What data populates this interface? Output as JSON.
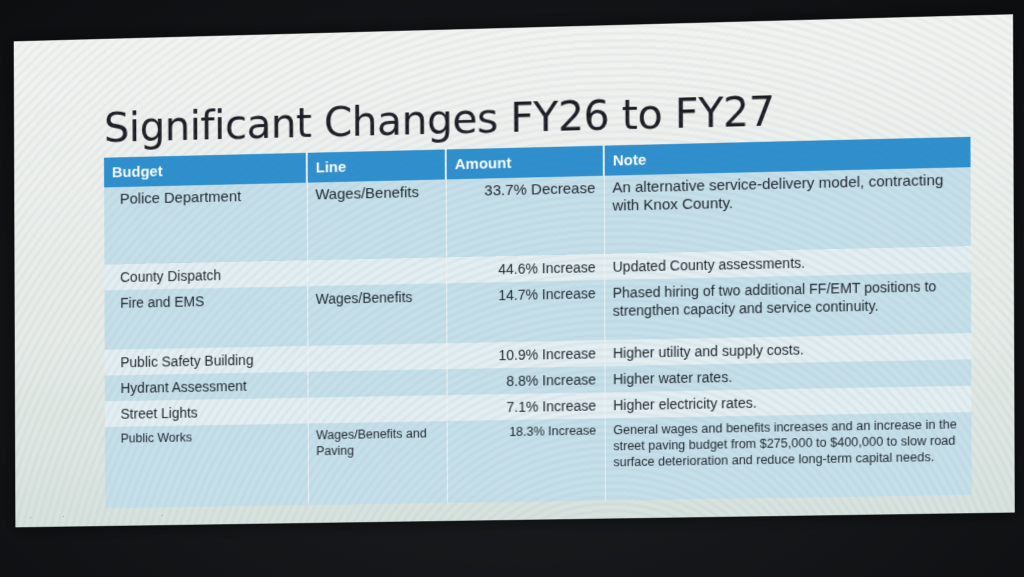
{
  "slide": {
    "title": "Significant Changes FY26 to FY27"
  },
  "table": {
    "headers": {
      "budget": "Budget",
      "line": "Line",
      "amount": "Amount",
      "note": "Note"
    },
    "rows": [
      {
        "budget": "Police Department",
        "line": "Wages/Benefits",
        "amount": "33.7% Decrease",
        "note": "An alternative service-delivery model, contracting with Knox County."
      },
      {
        "budget": "County Dispatch",
        "line": "",
        "amount": "44.6% Increase",
        "note": "Updated County assessments."
      },
      {
        "budget": "Fire and EMS",
        "line": "Wages/Benefits",
        "amount": "14.7% Increase",
        "note": "Phased hiring of two additional FF/EMT positions to strengthen capacity and service continuity."
      },
      {
        "budget": "Public Safety Building",
        "line": "",
        "amount": "10.9% Increase",
        "note": "Higher utility and supply costs."
      },
      {
        "budget": "Hydrant Assessment",
        "line": "",
        "amount": "8.8% Increase",
        "note": "Higher water rates."
      },
      {
        "budget": "Street Lights",
        "line": "",
        "amount": "7.1% Increase",
        "note": "Higher electricity rates."
      },
      {
        "budget": "Public Works",
        "line": "Wages/Benefits and Paving",
        "amount": "18.3% Increase",
        "note": "General wages and benefits increases and an increase in the street paving budget from $275,000 to $400,000 to slow road surface deterioration and reduce long-term capital needs."
      }
    ]
  }
}
